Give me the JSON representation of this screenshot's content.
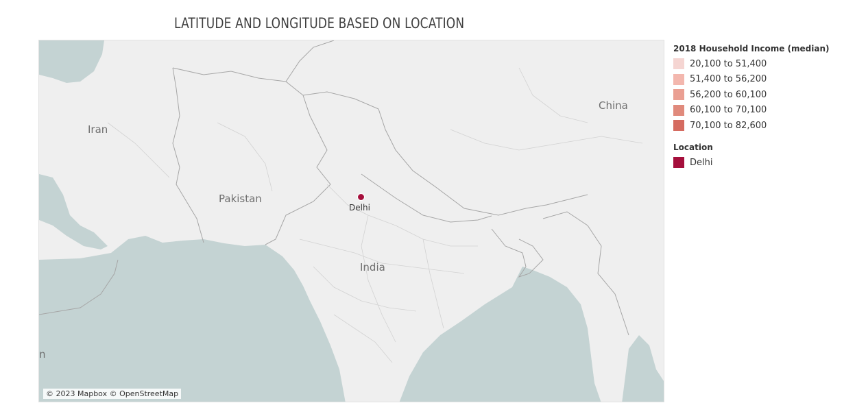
{
  "title": "LATITUDE AND LONGITUDE BASED ON LOCATION",
  "map": {
    "attribution": "© 2023 Mapbox © OpenStreetMap",
    "land_color": "#efefef",
    "water_color": "#c4d3d3",
    "country_labels": {
      "iran": "Iran",
      "pakistan": "Pakistan",
      "india": "India",
      "china": "China",
      "edge_fragment": "n"
    },
    "markers": [
      {
        "name": "Delhi",
        "label": "Delhi",
        "lat": 28.61,
        "lon": 77.21,
        "color": "#a50f3c"
      }
    ]
  },
  "legend_income": {
    "title": "2018 Household Income (median)",
    "items": [
      {
        "label": "20,100 to 51,400",
        "color": "#f5d5d2"
      },
      {
        "label": "51,400 to 56,200",
        "color": "#f3b7ae"
      },
      {
        "label": "56,200 to 60,100",
        "color": "#ea9f92"
      },
      {
        "label": "60,100 to 70,100",
        "color": "#e08a7c"
      },
      {
        "label": "70,100 to 82,600",
        "color": "#d56b60"
      }
    ]
  },
  "legend_location": {
    "title": "Location",
    "items": [
      {
        "label": "Delhi",
        "color": "#a50f3c"
      }
    ]
  }
}
